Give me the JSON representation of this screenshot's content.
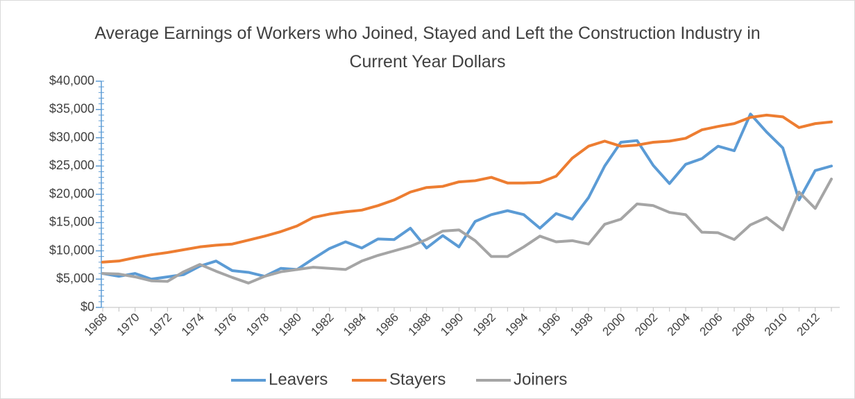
{
  "chart_data": {
    "type": "line",
    "title": "Average Earnings of Workers who Joined, Stayed and Left the Construction Industry in Current Year Dollars",
    "categories": [
      "1968",
      null,
      "1970",
      null,
      "1972",
      null,
      "1974",
      null,
      "1976",
      null,
      "1978",
      null,
      "1980",
      null,
      "1982",
      null,
      "1984",
      null,
      "1986",
      null,
      "1988",
      null,
      "1990",
      null,
      "1992",
      null,
      "1994",
      null,
      "1996",
      null,
      "1998",
      null,
      "2000",
      null,
      "2002",
      null,
      "2004",
      null,
      "2006",
      null,
      "2008",
      null,
      "2010",
      null,
      "2012",
      null
    ],
    "series": [
      {
        "name": "Leavers",
        "color": "#5b9bd5",
        "values": [
          6000,
          5500,
          6000,
          5000,
          5400,
          5800,
          7300,
          8200,
          6500,
          6200,
          5500,
          6900,
          6700,
          8600,
          10400,
          11600,
          10500,
          12100,
          12000,
          14000,
          10500,
          12700,
          10700,
          15200,
          16400,
          17100,
          16400,
          14000,
          16600,
          15600,
          19400,
          25000,
          29200,
          29500,
          25100,
          21900,
          25300,
          26300,
          28500,
          27700,
          34200,
          31000,
          28200,
          19000,
          24200,
          25000
        ]
      },
      {
        "name": "Stayers",
        "color": "#ed7d31",
        "values": [
          8000,
          8200,
          8800,
          9300,
          9700,
          10200,
          10700,
          11000,
          11200,
          11900,
          12600,
          13400,
          14400,
          15900,
          16500,
          16900,
          17200,
          18000,
          19000,
          20400,
          21200,
          21400,
          22200,
          22400,
          23000,
          22000,
          22000,
          22100,
          23200,
          26400,
          28500,
          29400,
          28500,
          28700,
          29200,
          29400,
          29900,
          31400,
          32000,
          32500,
          33600,
          34000,
          33700,
          31800,
          32500,
          32800
        ]
      },
      {
        "name": "Joiners",
        "color": "#a5a5a5",
        "values": [
          6000,
          5900,
          5400,
          4700,
          4600,
          6300,
          7600,
          6400,
          5300,
          4300,
          5500,
          6300,
          6700,
          7100,
          6900,
          6700,
          8200,
          9200,
          10000,
          10800,
          12000,
          13500,
          13700,
          11800,
          9000,
          9000,
          10700,
          12600,
          11600,
          11800,
          11200,
          14700,
          15600,
          18300,
          18000,
          16800,
          16400,
          13300,
          13200,
          12000,
          14600,
          15900,
          13700,
          20400,
          17500,
          22700
        ]
      }
    ],
    "ylim": [
      0,
      40000
    ],
    "yticks": [
      {
        "value": 0,
        "label": "$0"
      },
      {
        "value": 5000,
        "label": "$5,000"
      },
      {
        "value": 10000,
        "label": "$10,000"
      },
      {
        "value": 15000,
        "label": "$15,000"
      },
      {
        "value": 20000,
        "label": "$20,000"
      },
      {
        "value": 25000,
        "label": "$25,000"
      },
      {
        "value": 30000,
        "label": "$30,000"
      },
      {
        "value": 35000,
        "label": "$35,000"
      },
      {
        "value": 40000,
        "label": "$40,000"
      }
    ],
    "grid": false,
    "legend": "bottom"
  }
}
